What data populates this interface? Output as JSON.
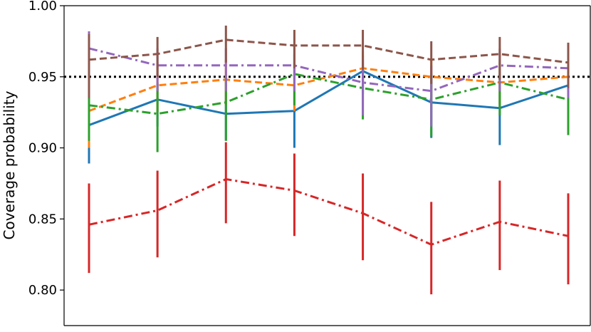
{
  "chart_data": {
    "type": "line",
    "ylabel": "Coverage probability",
    "xlabel": "",
    "ylim": [
      0.775,
      1.0
    ],
    "yticks": [
      "0.80",
      "0.85",
      "0.90",
      "0.95",
      "1.00"
    ],
    "x": [
      1,
      2,
      3,
      4,
      5,
      6,
      7,
      8
    ],
    "reference_line": {
      "y": 0.95,
      "style": "dotted",
      "color": "#000000"
    },
    "series": [
      {
        "color": "#1f77b4",
        "dash": "solid",
        "values": [
          0.916,
          0.934,
          0.924,
          0.926,
          0.954,
          0.932,
          0.928,
          0.944
        ],
        "lower": [
          0.889,
          0.915,
          0.905,
          0.9,
          0.938,
          0.907,
          0.902,
          0.935
        ],
        "upper": [
          0.935,
          0.946,
          0.94,
          0.944,
          0.965,
          0.95,
          0.946,
          0.955
        ]
      },
      {
        "color": "#ff7f0e",
        "dash": "dashed",
        "values": [
          0.926,
          0.944,
          0.948,
          0.944,
          0.956,
          0.95,
          0.946,
          0.95
        ],
        "lower": [
          0.9,
          0.925,
          0.93,
          0.926,
          0.942,
          0.935,
          0.93,
          0.938
        ],
        "upper": [
          0.948,
          0.96,
          0.962,
          0.96,
          0.968,
          0.963,
          0.96,
          0.963
        ]
      },
      {
        "color": "#2ca02c",
        "dash": "dashdot",
        "values": [
          0.93,
          0.924,
          0.932,
          0.952,
          0.942,
          0.934,
          0.946,
          0.934
        ],
        "lower": [
          0.905,
          0.897,
          0.905,
          0.93,
          0.92,
          0.908,
          0.923,
          0.909
        ],
        "upper": [
          0.95,
          0.945,
          0.95,
          0.966,
          0.958,
          0.952,
          0.962,
          0.952
        ]
      },
      {
        "color": "#d62728",
        "dash": "dashdot",
        "values": [
          0.846,
          0.856,
          0.878,
          0.87,
          0.854,
          0.832,
          0.848,
          0.838
        ],
        "lower": [
          0.812,
          0.823,
          0.847,
          0.838,
          0.821,
          0.797,
          0.814,
          0.804
        ],
        "upper": [
          0.875,
          0.884,
          0.904,
          0.896,
          0.882,
          0.862,
          0.877,
          0.868
        ]
      },
      {
        "color": "#9467bd",
        "dash": "dashdot",
        "values": [
          0.97,
          0.958,
          0.958,
          0.958,
          0.946,
          0.94,
          0.958,
          0.956
        ],
        "lower": [
          0.955,
          0.94,
          0.94,
          0.94,
          0.923,
          0.915,
          0.94,
          0.935
        ],
        "upper": [
          0.982,
          0.97,
          0.97,
          0.97,
          0.962,
          0.958,
          0.97,
          0.968
        ]
      },
      {
        "color": "#8c564b",
        "dash": "dashed",
        "values": [
          0.962,
          0.966,
          0.976,
          0.972,
          0.972,
          0.962,
          0.966,
          0.96
        ],
        "lower": [
          0.935,
          0.95,
          0.96,
          0.956,
          0.955,
          0.945,
          0.948,
          0.942
        ],
        "upper": [
          0.98,
          0.978,
          0.986,
          0.983,
          0.983,
          0.975,
          0.978,
          0.974
        ]
      }
    ]
  }
}
